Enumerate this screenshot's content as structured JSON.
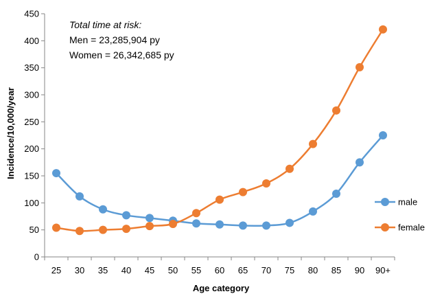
{
  "chart_data": {
    "type": "line",
    "xlabel": "Age category",
    "ylabel": "Incidence/10,000/year",
    "ylim": [
      0,
      450
    ],
    "yticks": [
      0,
      50,
      100,
      150,
      200,
      250,
      300,
      350,
      400,
      450
    ],
    "categories": [
      "25",
      "30",
      "35",
      "40",
      "45",
      "50",
      "55",
      "60",
      "65",
      "70",
      "75",
      "80",
      "85",
      "90",
      "90+"
    ],
    "grid": false,
    "legend_position": "right",
    "series": [
      {
        "name": "male",
        "color": "#5b9bd5",
        "values": [
          155,
          112,
          88,
          77,
          72,
          67,
          62,
          60,
          58,
          58,
          63,
          84,
          117,
          175,
          225
        ]
      },
      {
        "name": "female",
        "color": "#ed7d31",
        "values": [
          54,
          48,
          50,
          52,
          57,
          61,
          81,
          106,
          120,
          136,
          163,
          209,
          271,
          351,
          421
        ]
      }
    ],
    "annotation": {
      "title": "Total time at risk:",
      "lines": [
        "Men = 23,285,904 py",
        "Women = 26,342,685 py"
      ]
    }
  }
}
